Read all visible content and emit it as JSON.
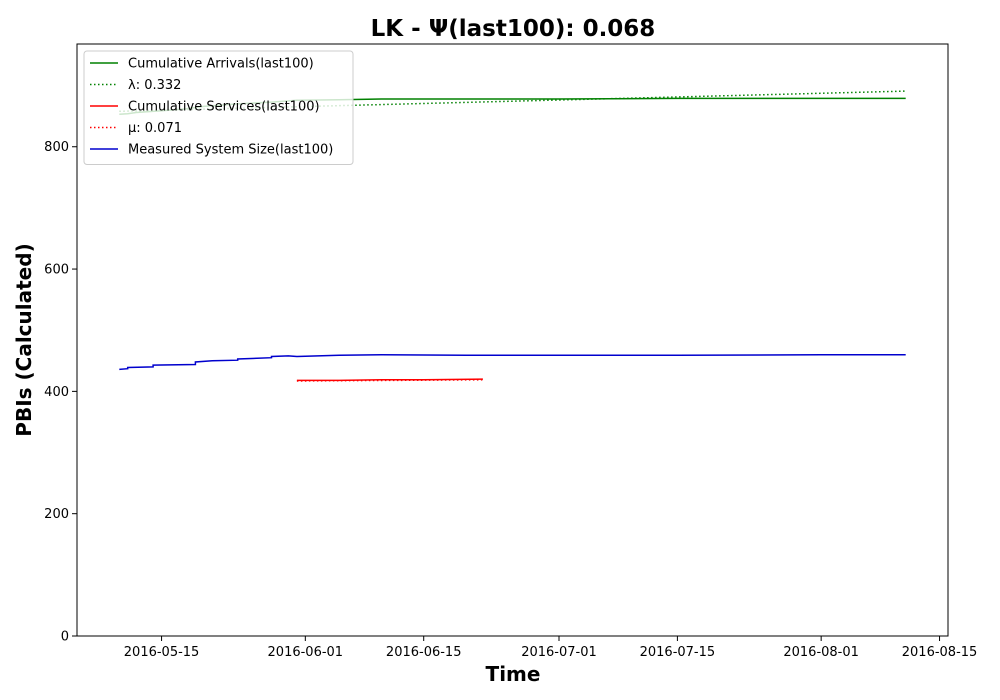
{
  "chart_data": {
    "type": "line",
    "title": "LK -  Ψ(last100): 0.068",
    "xlabel": "Time",
    "ylabel": "PBIs (Calculated)",
    "xlim": [
      "2016-05-05",
      "2016-08-16"
    ],
    "ylim": [
      0,
      968
    ],
    "x_ticks": [
      "2016-05-15",
      "2016-06-01",
      "2016-06-15",
      "2016-07-01",
      "2016-07-15",
      "2016-08-01",
      "2016-08-15"
    ],
    "y_ticks": [
      0,
      200,
      400,
      600,
      800
    ],
    "grid": false,
    "legend_position": "upper-left",
    "series": [
      {
        "name": "Cumulative Arrivals(last100)",
        "color": "#008000",
        "style": "solid",
        "points": [
          [
            "2016-05-10",
            853
          ],
          [
            "2016-05-11",
            854
          ],
          [
            "2016-05-12",
            856
          ],
          [
            "2016-05-15",
            859
          ],
          [
            "2016-05-18",
            862
          ],
          [
            "2016-05-20",
            866
          ],
          [
            "2016-05-24",
            870
          ],
          [
            "2016-05-28",
            873
          ],
          [
            "2016-05-31",
            876
          ],
          [
            "2016-06-05",
            877
          ],
          [
            "2016-06-10",
            878
          ],
          [
            "2016-06-20",
            878
          ],
          [
            "2016-07-01",
            878
          ],
          [
            "2016-07-15",
            879
          ],
          [
            "2016-08-01",
            879
          ],
          [
            "2016-08-11",
            879
          ]
        ]
      },
      {
        "name": "λ: 0.332",
        "color": "#008000",
        "style": "dotted",
        "points": [
          [
            "2016-05-10",
            858
          ],
          [
            "2016-08-11",
            891
          ]
        ]
      },
      {
        "name": "Cumulative Services(last100)",
        "color": "#ff0000",
        "style": "solid",
        "points": [
          [
            "2016-05-31",
            418
          ],
          [
            "2016-06-05",
            418
          ],
          [
            "2016-06-10",
            419
          ],
          [
            "2016-06-15",
            419
          ],
          [
            "2016-06-22",
            420
          ]
        ]
      },
      {
        "name": "μ: 0.071",
        "color": "#ff0000",
        "style": "dotted",
        "points": [
          [
            "2016-05-31",
            417
          ],
          [
            "2016-06-22",
            419
          ]
        ]
      },
      {
        "name": "Measured System Size(last100)",
        "color": "#0000cd",
        "style": "solid",
        "points": [
          [
            "2016-05-10",
            436
          ],
          [
            "2016-05-11",
            437
          ],
          [
            "2016-05-11",
            439
          ],
          [
            "2016-05-14",
            440
          ],
          [
            "2016-05-14",
            443
          ],
          [
            "2016-05-19",
            444
          ],
          [
            "2016-05-19",
            448
          ],
          [
            "2016-05-21",
            450
          ],
          [
            "2016-05-24",
            451
          ],
          [
            "2016-05-24",
            453
          ],
          [
            "2016-05-28",
            455
          ],
          [
            "2016-05-28",
            457
          ],
          [
            "2016-05-30",
            458
          ],
          [
            "2016-05-31",
            457
          ],
          [
            "2016-06-05",
            459
          ],
          [
            "2016-06-10",
            460
          ],
          [
            "2016-06-20",
            459
          ],
          [
            "2016-07-01",
            459
          ],
          [
            "2016-07-15",
            459
          ],
          [
            "2016-08-01",
            460
          ],
          [
            "2016-08-11",
            460
          ]
        ]
      }
    ]
  }
}
